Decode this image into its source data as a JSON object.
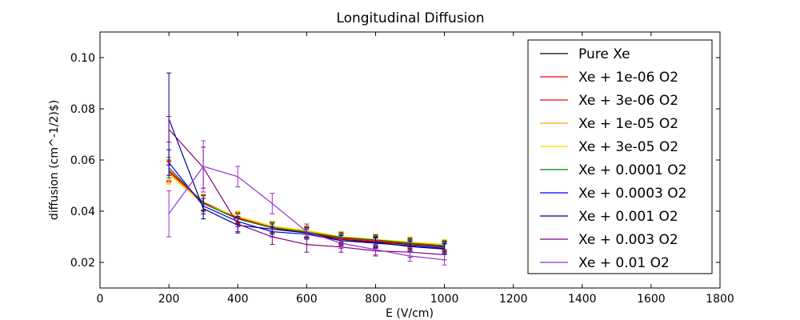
{
  "chart_data": {
    "type": "line",
    "title": "Longitudinal Diffusion",
    "xlabel": "E (V/cm)",
    "ylabel": "diffusion (cm^-1/2)$)",
    "xlim": [
      0,
      1800
    ],
    "ylim": [
      0.01,
      0.11
    ],
    "xticks": [
      0,
      200,
      400,
      600,
      800,
      1000,
      1200,
      1400,
      1600,
      1800
    ],
    "yticks": [
      0.02,
      0.04,
      0.06,
      0.08,
      0.1
    ],
    "ytick_labels": [
      "0.02",
      "0.04",
      "0.06",
      "0.08",
      "0.10"
    ],
    "grid": false,
    "legend_position": "top-right",
    "x": [
      200,
      300,
      400,
      500,
      600,
      700,
      800,
      900,
      1000
    ],
    "series": [
      {
        "name": "Pure Xe",
        "color": "#000000",
        "values": [
          0.0555,
          0.043,
          0.037,
          0.0335,
          0.0315,
          0.029,
          0.028,
          0.027,
          0.026
        ],
        "errors": [
          0.004,
          0.003,
          0.002,
          0.002,
          0.002,
          0.002,
          0.002,
          0.002,
          0.002
        ]
      },
      {
        "name": "Xe + 1e-06 O2",
        "color": "#ff0000",
        "values": [
          0.056,
          0.0435,
          0.0375,
          0.034,
          0.032,
          0.0295,
          0.0285,
          0.0275,
          0.0265
        ],
        "errors": [
          0.004,
          0.003,
          0.002,
          0.002,
          0.002,
          0.002,
          0.002,
          0.002,
          0.002
        ]
      },
      {
        "name": "Xe + 3e-06 O2",
        "color": "#ff0000",
        "values": [
          0.0555,
          0.0432,
          0.0372,
          0.0338,
          0.0318,
          0.0292,
          0.0282,
          0.0272,
          0.0262
        ],
        "errors": [
          0.004,
          0.003,
          0.002,
          0.002,
          0.002,
          0.002,
          0.002,
          0.002,
          0.002
        ]
      },
      {
        "name": "Xe + 1e-05 O2",
        "color": "#ffa500",
        "values": [
          0.055,
          0.043,
          0.0378,
          0.034,
          0.0322,
          0.0298,
          0.0288,
          0.0278,
          0.0268
        ],
        "errors": [
          0.004,
          0.003,
          0.002,
          0.002,
          0.002,
          0.002,
          0.002,
          0.002,
          0.002
        ]
      },
      {
        "name": "Xe + 3e-05 O2",
        "color": "#ffd700",
        "values": [
          0.0545,
          0.0428,
          0.038,
          0.0342,
          0.0325,
          0.03,
          0.029,
          0.028,
          0.027
        ],
        "errors": [
          0.004,
          0.003,
          0.002,
          0.002,
          0.002,
          0.002,
          0.002,
          0.002,
          0.002
        ]
      },
      {
        "name": "Xe + 0.0001 O2",
        "color": "#008000",
        "values": [
          0.057,
          0.043,
          0.037,
          0.0335,
          0.0318,
          0.0298,
          0.0288,
          0.0275,
          0.0265
        ],
        "errors": [
          0.004,
          0.003,
          0.002,
          0.002,
          0.002,
          0.002,
          0.002,
          0.002,
          0.002
        ]
      },
      {
        "name": "Xe + 0.0003 O2",
        "color": "#0000ff",
        "values": [
          0.059,
          0.042,
          0.036,
          0.032,
          0.031,
          0.0285,
          0.0275,
          0.0265,
          0.0255
        ],
        "errors": [
          0.005,
          0.003,
          0.002,
          0.002,
          0.002,
          0.002,
          0.002,
          0.002,
          0.002
        ]
      },
      {
        "name": "Xe + 0.001 O2",
        "color": "#00008b",
        "values": [
          0.076,
          0.041,
          0.0345,
          0.033,
          0.0315,
          0.0285,
          0.0278,
          0.0262,
          0.0252
        ],
        "errors": [
          0.018,
          0.004,
          0.003,
          0.002,
          0.002,
          0.002,
          0.002,
          0.002,
          0.002
        ]
      },
      {
        "name": "Xe + 0.003 O2",
        "color": "#800080",
        "values": [
          0.072,
          0.057,
          0.035,
          0.03,
          0.027,
          0.026,
          0.0245,
          0.024,
          0.023
        ],
        "errors": [
          0.005,
          0.008,
          0.003,
          0.003,
          0.003,
          0.002,
          0.002,
          0.002,
          0.002
        ]
      },
      {
        "name": "Xe + 0.01 O2",
        "color": "#9932cc",
        "values": [
          0.039,
          0.0575,
          0.0535,
          0.043,
          0.032,
          0.0275,
          0.025,
          0.0225,
          0.021
        ],
        "errors": [
          0.009,
          0.01,
          0.004,
          0.004,
          0.003,
          0.002,
          0.002,
          0.002,
          0.002
        ]
      }
    ]
  }
}
